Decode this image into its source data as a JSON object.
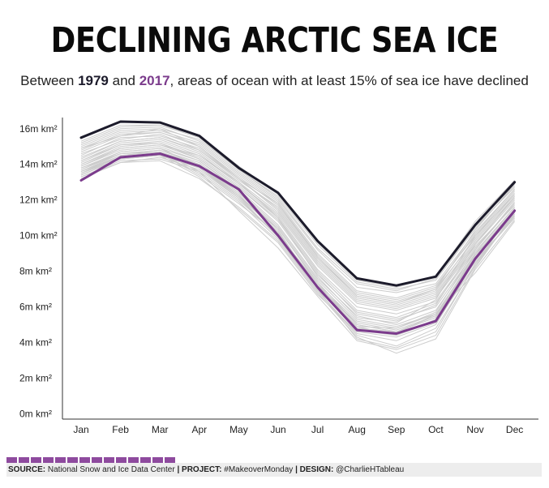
{
  "title": "DECLINING ARCTIC SEA ICE",
  "subtitle": {
    "part1": "Between ",
    "year_start": "1979",
    "part2": " and ",
    "year_end": "2017",
    "part3": ", areas of ocean with at least 15% of sea ice have declined"
  },
  "footer": {
    "source_label": "SOURCE:",
    "source_value": " National Snow and Ice Data Center",
    "project_label": "| PROJECT:",
    "project_value": " #MakeoverMonday",
    "design_label": "| DESIGN:",
    "design_value": " @CharlieHTableau",
    "bar_count": 14
  },
  "colors": {
    "highlight_1979": "#1c1b2b",
    "highlight_2017": "#7b3b8c",
    "background_years": "#cccccc",
    "footer_accent": "#8e4a9e"
  },
  "chart_data": {
    "type": "line",
    "x": [
      "Jan",
      "Feb",
      "Mar",
      "Apr",
      "May",
      "Jun",
      "Jul",
      "Aug",
      "Sep",
      "Oct",
      "Nov",
      "Dec"
    ],
    "y_ticks": [
      "0m km²",
      "2m km²",
      "4m km²",
      "6m km²",
      "8m km²",
      "10m km²",
      "12m km²",
      "14m km²",
      "16m km²"
    ],
    "y_tick_values": [
      0,
      2,
      4,
      6,
      8,
      10,
      12,
      14,
      16
    ],
    "ylim": [
      -0.3,
      16.4
    ],
    "grid": false,
    "series": [
      {
        "year": "1979",
        "role": "highlight_start",
        "values": [
          15.5,
          16.4,
          16.35,
          15.6,
          13.8,
          12.4,
          9.7,
          7.6,
          7.2,
          7.7,
          10.6,
          13.0
        ]
      },
      {
        "year": "2017",
        "role": "highlight_end",
        "values": [
          13.1,
          14.4,
          14.6,
          13.9,
          12.6,
          10.0,
          7.1,
          4.7,
          4.5,
          5.2,
          8.7,
          11.4
        ]
      },
      {
        "role": "background",
        "values": [
          15.3,
          16.2,
          16.2,
          15.5,
          13.7,
          12.2,
          9.5,
          7.4,
          7.0,
          7.5,
          10.4,
          12.8
        ]
      },
      {
        "role": "background",
        "values": [
          15.1,
          16.0,
          16.1,
          15.3,
          13.6,
          12.0,
          9.2,
          7.1,
          6.8,
          7.3,
          10.2,
          12.6
        ]
      },
      {
        "role": "background",
        "values": [
          14.9,
          15.8,
          15.9,
          15.2,
          13.5,
          11.9,
          9.0,
          6.9,
          6.5,
          7.2,
          10.0,
          12.5
        ]
      },
      {
        "role": "background",
        "values": [
          14.7,
          15.6,
          15.8,
          15.0,
          13.3,
          11.7,
          8.8,
          6.7,
          6.3,
          7.0,
          9.8,
          12.3
        ]
      },
      {
        "role": "background",
        "values": [
          14.5,
          15.5,
          15.6,
          14.9,
          13.2,
          11.5,
          8.6,
          6.5,
          6.1,
          6.8,
          9.7,
          12.2
        ]
      },
      {
        "role": "background",
        "values": [
          14.3,
          15.3,
          15.5,
          14.7,
          13.0,
          11.3,
          8.4,
          6.3,
          5.9,
          6.6,
          9.5,
          12.0
        ]
      },
      {
        "role": "background",
        "values": [
          14.1,
          15.1,
          15.3,
          14.5,
          12.9,
          11.1,
          8.1,
          6.0,
          5.6,
          6.3,
          9.3,
          11.8
        ]
      },
      {
        "role": "background",
        "values": [
          13.9,
          14.9,
          15.1,
          14.3,
          12.7,
          10.8,
          7.8,
          5.7,
          5.3,
          6.0,
          9.1,
          11.6
        ]
      },
      {
        "role": "background",
        "values": [
          13.7,
          14.7,
          14.9,
          14.2,
          12.5,
          10.5,
          7.5,
          5.3,
          4.9,
          5.6,
          8.9,
          11.4
        ]
      },
      {
        "role": "background",
        "values": [
          13.5,
          14.5,
          14.7,
          14.0,
          12.3,
          10.2,
          7.1,
          4.9,
          4.4,
          5.2,
          8.7,
          11.2
        ]
      },
      {
        "role": "background",
        "values": [
          13.8,
          14.6,
          14.8,
          14.1,
          12.4,
          10.3,
          7.0,
          4.2,
          3.7,
          4.6,
          8.4,
          11.5
        ]
      },
      {
        "role": "background",
        "values": [
          13.6,
          14.4,
          14.6,
          13.4,
          11.8,
          10.1,
          7.3,
          4.8,
          4.6,
          5.4,
          8.9,
          11.3
        ]
      },
      {
        "role": "background",
        "values": [
          13.3,
          14.2,
          14.3,
          13.6,
          12.0,
          10.0,
          7.2,
          5.1,
          4.7,
          5.5,
          9.0,
          11.1
        ]
      },
      {
        "role": "background",
        "values": [
          14.0,
          15.0,
          15.2,
          14.4,
          12.8,
          11.0,
          8.0,
          5.8,
          5.4,
          6.2,
          9.2,
          11.9
        ]
      },
      {
        "role": "background",
        "values": [
          14.6,
          15.4,
          15.7,
          14.8,
          13.1,
          11.6,
          8.7,
          6.6,
          6.2,
          6.9,
          9.9,
          12.4
        ]
      },
      {
        "role": "background",
        "values": [
          15.0,
          15.9,
          16.0,
          15.4,
          13.7,
          12.1,
          9.3,
          7.3,
          6.9,
          7.6,
          10.5,
          12.7
        ]
      },
      {
        "role": "background",
        "values": [
          14.2,
          15.2,
          15.4,
          14.6,
          12.9,
          11.2,
          8.3,
          6.2,
          5.8,
          6.5,
          9.4,
          11.7
        ]
      },
      {
        "role": "background",
        "values": [
          13.9,
          14.8,
          15.0,
          14.2,
          12.6,
          10.6,
          7.6,
          5.5,
          5.0,
          5.8,
          9.0,
          11.6
        ]
      },
      {
        "role": "background",
        "values": [
          13.4,
          14.3,
          14.5,
          13.8,
          12.2,
          9.9,
          6.9,
          4.5,
          4.1,
          5.0,
          8.6,
          11.0
        ]
      },
      {
        "role": "background",
        "values": [
          14.4,
          15.3,
          15.5,
          14.8,
          13.2,
          11.4,
          8.5,
          6.4,
          6.0,
          6.7,
          9.6,
          12.1
        ]
      },
      {
        "role": "background",
        "values": [
          14.8,
          15.7,
          15.8,
          15.1,
          13.4,
          11.8,
          8.9,
          6.8,
          6.4,
          7.1,
          10.1,
          12.6
        ]
      },
      {
        "role": "background",
        "values": [
          13.2,
          14.1,
          14.2,
          13.2,
          11.6,
          9.7,
          6.8,
          4.3,
          3.4,
          4.2,
          8.1,
          10.9
        ]
      },
      {
        "role": "background",
        "values": [
          13.6,
          14.5,
          14.7,
          13.9,
          12.2,
          10.4,
          7.4,
          5.0,
          4.6,
          5.4,
          8.8,
          11.3
        ]
      },
      {
        "role": "background",
        "values": [
          13.5,
          14.4,
          14.6,
          13.5,
          11.9,
          9.8,
          6.9,
          4.4,
          3.8,
          4.8,
          8.3,
          11.2
        ]
      },
      {
        "role": "background",
        "values": [
          13.4,
          14.3,
          14.5,
          13.3,
          11.5,
          9.6,
          6.7,
          4.6,
          4.3,
          5.1,
          8.4,
          11.1
        ]
      },
      {
        "role": "background",
        "values": [
          13.3,
          14.1,
          14.4,
          13.7,
          12.1,
          9.9,
          7.1,
          4.9,
          4.8,
          5.6,
          8.5,
          11.0
        ]
      },
      {
        "role": "background",
        "values": [
          13.5,
          14.3,
          14.6,
          13.9,
          12.3,
          10.1,
          7.2,
          5.0,
          4.6,
          5.5,
          8.7,
          11.2
        ]
      },
      {
        "role": "background",
        "values": [
          15.2,
          16.1,
          16.2,
          15.6,
          13.9,
          12.3,
          9.6,
          7.5,
          7.1,
          7.7,
          10.8,
          13.1
        ]
      },
      {
        "role": "background",
        "values": [
          14.9,
          15.6,
          16.0,
          15.0,
          13.2,
          11.8,
          8.8,
          6.6,
          6.2,
          7.0,
          10.3,
          12.9
        ]
      },
      {
        "role": "background",
        "values": [
          14.2,
          15.1,
          15.2,
          14.3,
          12.7,
          10.9,
          7.9,
          5.6,
          5.2,
          6.1,
          9.5,
          12.2
        ]
      },
      {
        "role": "background",
        "values": [
          13.7,
          14.6,
          14.8,
          14.0,
          12.4,
          10.4,
          7.3,
          5.2,
          4.8,
          5.7,
          9.2,
          11.8
        ]
      },
      {
        "role": "background",
        "values": [
          14.0,
          14.9,
          15.1,
          14.5,
          13.0,
          11.0,
          7.7,
          5.4,
          5.1,
          6.4,
          10.0,
          12.3
        ]
      },
      {
        "role": "background",
        "values": [
          13.8,
          14.7,
          14.9,
          13.9,
          12.2,
          10.2,
          7.0,
          4.7,
          4.4,
          5.3,
          8.9,
          11.5
        ]
      },
      {
        "role": "background",
        "values": [
          13.6,
          14.6,
          14.7,
          13.6,
          11.4,
          9.3,
          6.6,
          4.1,
          3.6,
          4.4,
          8.2,
          11.3
        ]
      },
      {
        "role": "background",
        "values": [
          13.4,
          14.3,
          14.5,
          13.8,
          12.1,
          10.0,
          7.1,
          4.8,
          4.5,
          5.6,
          7.9,
          10.8
        ]
      }
    ]
  }
}
